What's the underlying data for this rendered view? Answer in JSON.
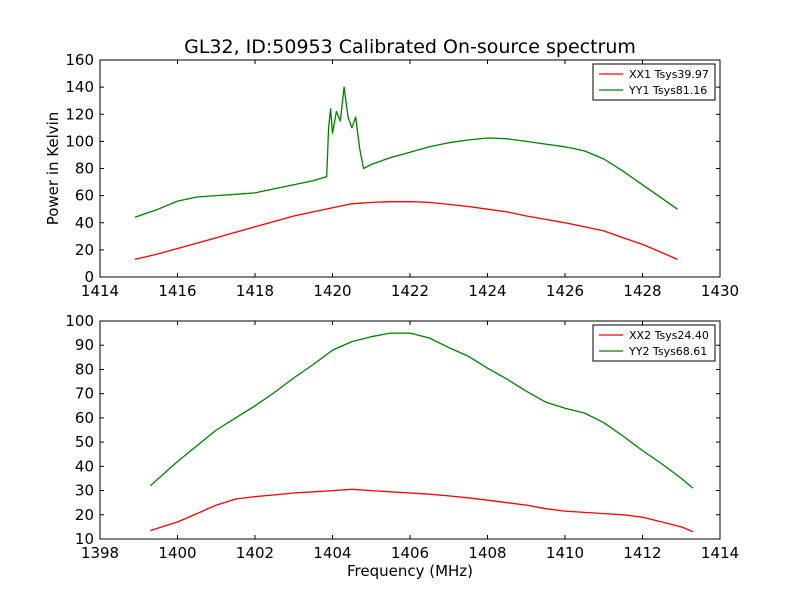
{
  "chart_data": [
    {
      "type": "line",
      "title": "GL32, ID:50953 Calibrated On-source spectrum",
      "xlabel": "",
      "ylabel": "Power in Kelvin",
      "xlim": [
        1414,
        1430
      ],
      "ylim": [
        0,
        160
      ],
      "xticks": [
        1414,
        1416,
        1418,
        1420,
        1422,
        1424,
        1426,
        1428,
        1430
      ],
      "yticks": [
        0,
        20,
        40,
        60,
        80,
        100,
        120,
        140,
        160
      ],
      "legend_position": "top-right",
      "series": [
        {
          "name": "XX1 Tsys39.97",
          "color": "#ff0000",
          "x": [
            1414.9,
            1415.5,
            1416.0,
            1416.5,
            1417.0,
            1417.5,
            1418.0,
            1418.5,
            1419.0,
            1419.5,
            1420.0,
            1420.5,
            1421.0,
            1421.5,
            1422.0,
            1422.5,
            1423.0,
            1423.5,
            1424.0,
            1424.5,
            1425.0,
            1425.5,
            1426.0,
            1426.5,
            1427.0,
            1427.5,
            1428.0,
            1428.5,
            1428.9
          ],
          "y": [
            13,
            17,
            21,
            25,
            29,
            33,
            37,
            41,
            45,
            48,
            51,
            54,
            55,
            55.5,
            55.5,
            55,
            53.5,
            52,
            50,
            48,
            45,
            42.5,
            40,
            37,
            34,
            29,
            24,
            18,
            13
          ]
        },
        {
          "name": "YY1 Tsys81.16",
          "color": "#008000",
          "x": [
            1414.9,
            1415.5,
            1416.0,
            1416.5,
            1417.0,
            1417.5,
            1418.0,
            1418.5,
            1419.0,
            1419.5,
            1419.85,
            1419.9,
            1419.95,
            1420.0,
            1420.1,
            1420.2,
            1420.3,
            1420.4,
            1420.5,
            1420.6,
            1420.7,
            1420.8,
            1421.0,
            1421.5,
            1422.0,
            1422.5,
            1423.0,
            1423.5,
            1424.0,
            1424.5,
            1425.0,
            1425.5,
            1426.0,
            1426.5,
            1427.0,
            1427.5,
            1428.0,
            1428.5,
            1428.9
          ],
          "y": [
            44,
            50,
            56,
            59,
            60,
            61,
            62,
            65,
            68,
            71,
            74,
            110,
            124,
            106,
            122,
            115,
            140,
            118,
            110,
            118,
            95,
            80,
            83,
            88,
            92,
            96,
            99,
            101,
            102.5,
            102,
            100,
            98,
            96,
            93,
            87,
            78,
            68,
            58,
            50
          ]
        }
      ]
    },
    {
      "type": "line",
      "title": "",
      "xlabel": "Frequency (MHz)",
      "ylabel": "",
      "xlim": [
        1398,
        1414
      ],
      "ylim": [
        10,
        100
      ],
      "xticks": [
        1398,
        1400,
        1402,
        1404,
        1406,
        1408,
        1410,
        1412,
        1414
      ],
      "yticks": [
        10,
        20,
        30,
        40,
        50,
        60,
        70,
        80,
        90,
        100
      ],
      "legend_position": "top-right",
      "series": [
        {
          "name": "XX2 Tsys24.40",
          "color": "#ff0000",
          "x": [
            1399.3,
            1400.0,
            1400.5,
            1401.0,
            1401.5,
            1402.0,
            1402.5,
            1403.0,
            1403.5,
            1404.0,
            1404.5,
            1405.0,
            1405.5,
            1406.0,
            1406.5,
            1407.0,
            1407.5,
            1408.0,
            1408.5,
            1409.0,
            1409.5,
            1410.0,
            1410.5,
            1411.0,
            1411.5,
            1412.0,
            1412.5,
            1413.0,
            1413.3
          ],
          "y": [
            13.5,
            17,
            20.5,
            24,
            26.5,
            27.5,
            28.2,
            29,
            29.5,
            30,
            30.5,
            30,
            29.5,
            29,
            28.5,
            27.8,
            27,
            26,
            25,
            24,
            22.5,
            21.5,
            21,
            20.5,
            20,
            19,
            17,
            15,
            13
          ]
        },
        {
          "name": "YY2 Tsys68.61",
          "color": "#008000",
          "x": [
            1399.3,
            1400.0,
            1400.5,
            1401.0,
            1401.5,
            1402.0,
            1402.5,
            1403.0,
            1403.5,
            1404.0,
            1404.5,
            1405.0,
            1405.5,
            1406.0,
            1406.5,
            1407.0,
            1407.5,
            1408.0,
            1408.5,
            1409.0,
            1409.5,
            1410.0,
            1410.5,
            1411.0,
            1411.5,
            1412.0,
            1412.5,
            1413.0,
            1413.3
          ],
          "y": [
            32,
            42,
            48.5,
            55,
            60,
            65,
            70.5,
            76.5,
            82,
            88,
            91.5,
            93.5,
            95,
            95,
            93,
            89,
            85.5,
            80.5,
            76,
            71,
            66.5,
            64,
            62,
            58,
            52.5,
            46.5,
            41,
            35,
            31
          ]
        }
      ]
    }
  ]
}
